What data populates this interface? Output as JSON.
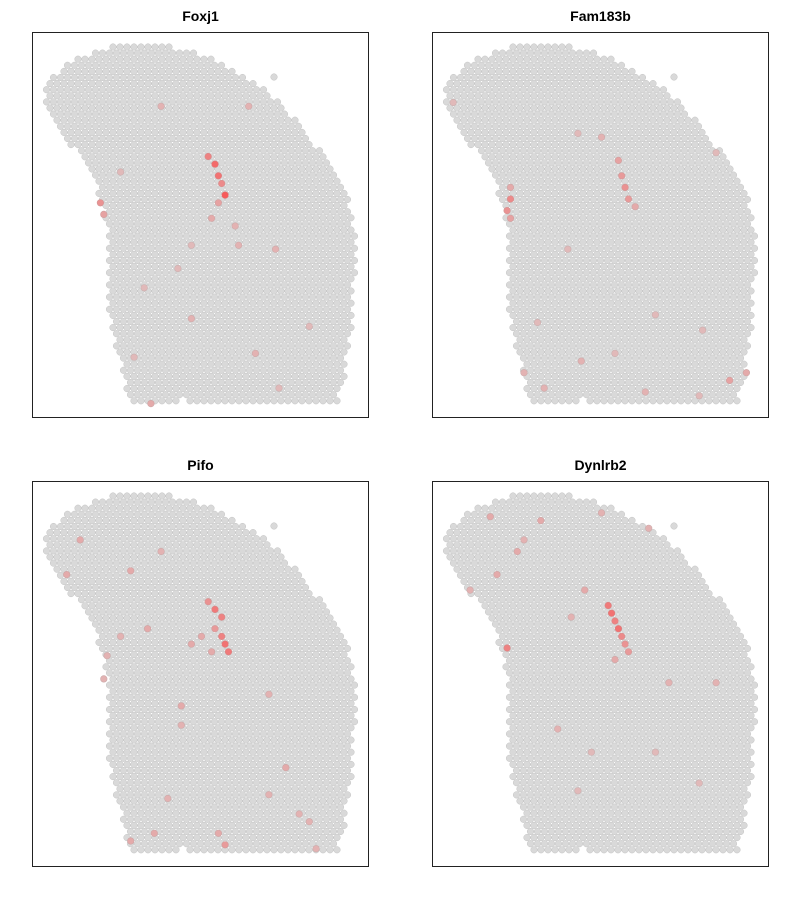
{
  "colors": {
    "low": "#d9d9d9",
    "high": "#ff3b3b",
    "stroke": "#c4c4c4",
    "frame": "#222222"
  },
  "chart_data": [
    {
      "type": "scatter",
      "title": "Foxj1",
      "grid": false,
      "spot_size": "uniform",
      "color_scale": [
        "#d9d9d9",
        "#ff3b3b"
      ],
      "high_expression_points": [
        {
          "x": 0.52,
          "y": 0.32,
          "v": 0.55
        },
        {
          "x": 0.54,
          "y": 0.34,
          "v": 0.7
        },
        {
          "x": 0.55,
          "y": 0.37,
          "v": 0.65
        },
        {
          "x": 0.56,
          "y": 0.39,
          "v": 0.5
        },
        {
          "x": 0.57,
          "y": 0.42,
          "v": 0.8
        },
        {
          "x": 0.55,
          "y": 0.44,
          "v": 0.35
        },
        {
          "x": 0.53,
          "y": 0.48,
          "v": 0.3
        },
        {
          "x": 0.2,
          "y": 0.44,
          "v": 0.45
        },
        {
          "x": 0.21,
          "y": 0.47,
          "v": 0.35
        },
        {
          "x": 0.38,
          "y": 0.19,
          "v": 0.25
        },
        {
          "x": 0.64,
          "y": 0.19,
          "v": 0.25
        },
        {
          "x": 0.61,
          "y": 0.55,
          "v": 0.25
        },
        {
          "x": 0.72,
          "y": 0.56,
          "v": 0.25
        },
        {
          "x": 0.33,
          "y": 0.66,
          "v": 0.2
        },
        {
          "x": 0.47,
          "y": 0.74,
          "v": 0.25
        },
        {
          "x": 0.66,
          "y": 0.83,
          "v": 0.25
        },
        {
          "x": 0.82,
          "y": 0.76,
          "v": 0.2
        },
        {
          "x": 0.3,
          "y": 0.84,
          "v": 0.2
        },
        {
          "x": 0.35,
          "y": 0.96,
          "v": 0.3
        },
        {
          "x": 0.73,
          "y": 0.92,
          "v": 0.2
        },
        {
          "x": 0.47,
          "y": 0.55,
          "v": 0.2
        },
        {
          "x": 0.43,
          "y": 0.61,
          "v": 0.2
        },
        {
          "x": 0.6,
          "y": 0.5,
          "v": 0.25
        },
        {
          "x": 0.26,
          "y": 0.36,
          "v": 0.2
        }
      ]
    },
    {
      "type": "scatter",
      "title": "Fam183b",
      "grid": false,
      "spot_size": "uniform",
      "color_scale": [
        "#d9d9d9",
        "#ff3b3b"
      ],
      "high_expression_points": [
        {
          "x": 0.23,
          "y": 0.43,
          "v": 0.5
        },
        {
          "x": 0.22,
          "y": 0.46,
          "v": 0.45
        },
        {
          "x": 0.23,
          "y": 0.48,
          "v": 0.35
        },
        {
          "x": 0.23,
          "y": 0.4,
          "v": 0.3
        },
        {
          "x": 0.55,
          "y": 0.33,
          "v": 0.35
        },
        {
          "x": 0.56,
          "y": 0.37,
          "v": 0.4
        },
        {
          "x": 0.57,
          "y": 0.4,
          "v": 0.45
        },
        {
          "x": 0.58,
          "y": 0.43,
          "v": 0.4
        },
        {
          "x": 0.6,
          "y": 0.45,
          "v": 0.3
        },
        {
          "x": 0.5,
          "y": 0.27,
          "v": 0.25
        },
        {
          "x": 0.43,
          "y": 0.26,
          "v": 0.2
        },
        {
          "x": 0.84,
          "y": 0.31,
          "v": 0.2
        },
        {
          "x": 0.88,
          "y": 0.9,
          "v": 0.35
        },
        {
          "x": 0.93,
          "y": 0.88,
          "v": 0.3
        },
        {
          "x": 0.27,
          "y": 0.88,
          "v": 0.25
        },
        {
          "x": 0.44,
          "y": 0.85,
          "v": 0.25
        },
        {
          "x": 0.63,
          "y": 0.93,
          "v": 0.25
        },
        {
          "x": 0.79,
          "y": 0.94,
          "v": 0.2
        },
        {
          "x": 0.33,
          "y": 0.92,
          "v": 0.25
        },
        {
          "x": 0.54,
          "y": 0.83,
          "v": 0.2
        },
        {
          "x": 0.8,
          "y": 0.77,
          "v": 0.2
        },
        {
          "x": 0.66,
          "y": 0.73,
          "v": 0.2
        },
        {
          "x": 0.31,
          "y": 0.75,
          "v": 0.2
        },
        {
          "x": 0.06,
          "y": 0.18,
          "v": 0.2
        },
        {
          "x": 0.4,
          "y": 0.56,
          "v": 0.2
        }
      ]
    },
    {
      "type": "scatter",
      "title": "Pifo",
      "grid": false,
      "spot_size": "uniform",
      "color_scale": [
        "#d9d9d9",
        "#ff3b3b"
      ],
      "high_expression_points": [
        {
          "x": 0.52,
          "y": 0.31,
          "v": 0.45
        },
        {
          "x": 0.54,
          "y": 0.33,
          "v": 0.6
        },
        {
          "x": 0.56,
          "y": 0.35,
          "v": 0.55
        },
        {
          "x": 0.54,
          "y": 0.38,
          "v": 0.4
        },
        {
          "x": 0.56,
          "y": 0.4,
          "v": 0.55
        },
        {
          "x": 0.57,
          "y": 0.42,
          "v": 0.65
        },
        {
          "x": 0.58,
          "y": 0.44,
          "v": 0.6
        },
        {
          "x": 0.5,
          "y": 0.4,
          "v": 0.3
        },
        {
          "x": 0.47,
          "y": 0.42,
          "v": 0.3
        },
        {
          "x": 0.53,
          "y": 0.44,
          "v": 0.3
        },
        {
          "x": 0.14,
          "y": 0.15,
          "v": 0.3
        },
        {
          "x": 0.1,
          "y": 0.24,
          "v": 0.3
        },
        {
          "x": 0.29,
          "y": 0.23,
          "v": 0.3
        },
        {
          "x": 0.38,
          "y": 0.18,
          "v": 0.25
        },
        {
          "x": 0.34,
          "y": 0.38,
          "v": 0.3
        },
        {
          "x": 0.26,
          "y": 0.4,
          "v": 0.25
        },
        {
          "x": 0.22,
          "y": 0.45,
          "v": 0.25
        },
        {
          "x": 0.44,
          "y": 0.58,
          "v": 0.3
        },
        {
          "x": 0.44,
          "y": 0.63,
          "v": 0.25
        },
        {
          "x": 0.7,
          "y": 0.55,
          "v": 0.25
        },
        {
          "x": 0.75,
          "y": 0.74,
          "v": 0.3
        },
        {
          "x": 0.7,
          "y": 0.81,
          "v": 0.25
        },
        {
          "x": 0.4,
          "y": 0.82,
          "v": 0.25
        },
        {
          "x": 0.55,
          "y": 0.91,
          "v": 0.3
        },
        {
          "x": 0.36,
          "y": 0.91,
          "v": 0.3
        },
        {
          "x": 0.57,
          "y": 0.94,
          "v": 0.4
        },
        {
          "x": 0.29,
          "y": 0.93,
          "v": 0.3
        },
        {
          "x": 0.79,
          "y": 0.86,
          "v": 0.25
        },
        {
          "x": 0.82,
          "y": 0.88,
          "v": 0.25
        },
        {
          "x": 0.84,
          "y": 0.95,
          "v": 0.25
        },
        {
          "x": 0.21,
          "y": 0.51,
          "v": 0.25
        }
      ]
    },
    {
      "type": "scatter",
      "title": "Dynlrb2",
      "grid": false,
      "spot_size": "uniform",
      "color_scale": [
        "#d9d9d9",
        "#ff3b3b"
      ],
      "high_expression_points": [
        {
          "x": 0.52,
          "y": 0.32,
          "v": 0.6
        },
        {
          "x": 0.53,
          "y": 0.34,
          "v": 0.65
        },
        {
          "x": 0.54,
          "y": 0.36,
          "v": 0.55
        },
        {
          "x": 0.55,
          "y": 0.38,
          "v": 0.65
        },
        {
          "x": 0.56,
          "y": 0.4,
          "v": 0.5
        },
        {
          "x": 0.57,
          "y": 0.42,
          "v": 0.45
        },
        {
          "x": 0.58,
          "y": 0.44,
          "v": 0.4
        },
        {
          "x": 0.54,
          "y": 0.46,
          "v": 0.3
        },
        {
          "x": 0.22,
          "y": 0.43,
          "v": 0.55
        },
        {
          "x": 0.19,
          "y": 0.24,
          "v": 0.3
        },
        {
          "x": 0.25,
          "y": 0.18,
          "v": 0.3
        },
        {
          "x": 0.45,
          "y": 0.28,
          "v": 0.3
        },
        {
          "x": 0.41,
          "y": 0.35,
          "v": 0.25
        },
        {
          "x": 0.32,
          "y": 0.1,
          "v": 0.3
        },
        {
          "x": 0.17,
          "y": 0.09,
          "v": 0.3
        },
        {
          "x": 0.5,
          "y": 0.08,
          "v": 0.25
        },
        {
          "x": 0.64,
          "y": 0.12,
          "v": 0.25
        },
        {
          "x": 0.7,
          "y": 0.52,
          "v": 0.25
        },
        {
          "x": 0.84,
          "y": 0.52,
          "v": 0.25
        },
        {
          "x": 0.37,
          "y": 0.64,
          "v": 0.25
        },
        {
          "x": 0.47,
          "y": 0.7,
          "v": 0.2
        },
        {
          "x": 0.66,
          "y": 0.7,
          "v": 0.2
        },
        {
          "x": 0.79,
          "y": 0.78,
          "v": 0.2
        },
        {
          "x": 0.43,
          "y": 0.8,
          "v": 0.2
        },
        {
          "x": 0.27,
          "y": 0.15,
          "v": 0.25
        },
        {
          "x": 0.11,
          "y": 0.28,
          "v": 0.25
        }
      ]
    }
  ]
}
